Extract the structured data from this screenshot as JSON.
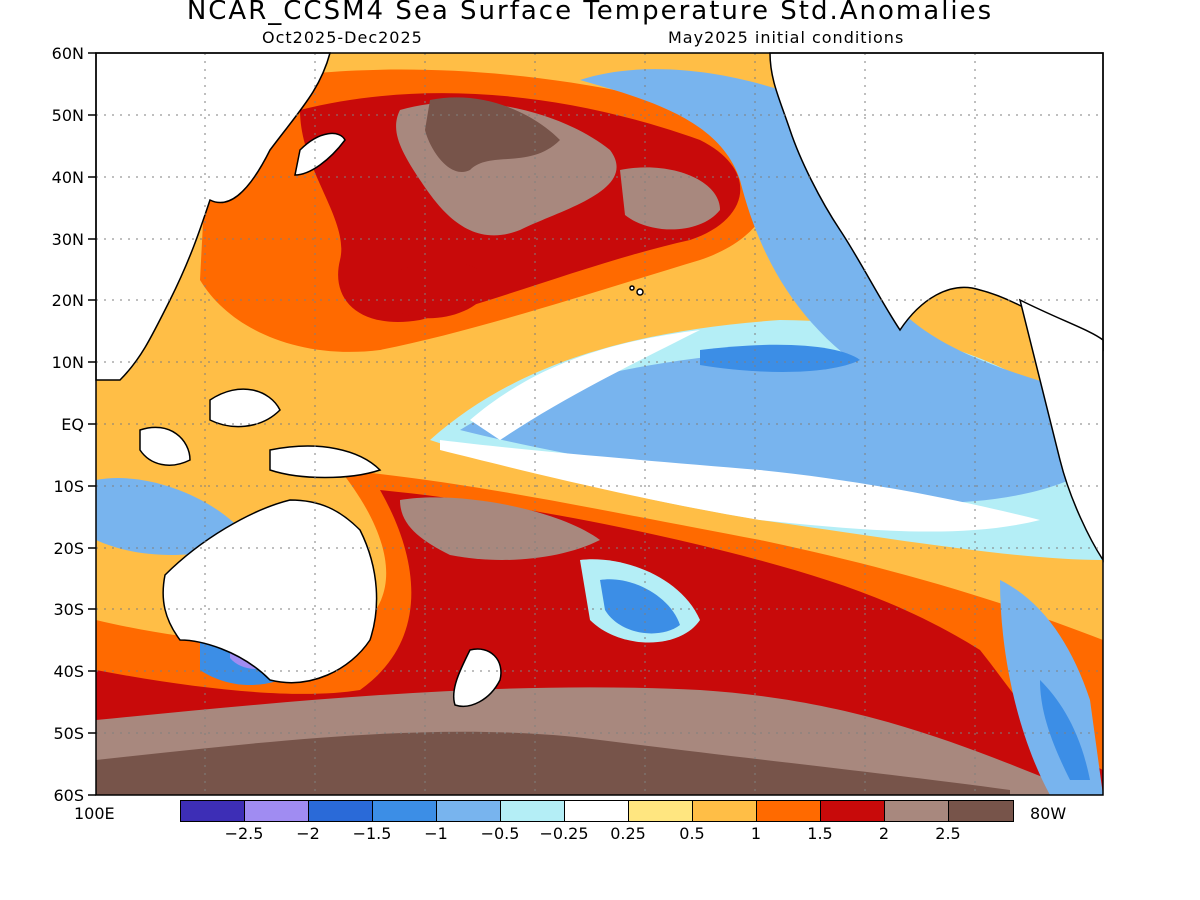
{
  "title": "NCAR_CCSM4 Sea Surface Temperature Std.Anomalies",
  "subtitle_left": "Oct2025-Dec2025",
  "subtitle_right": "May2025 initial conditions",
  "lat_labels": [
    "60N",
    "50N",
    "40N",
    "30N",
    "20N",
    "10N",
    "EQ",
    "10S",
    "20S",
    "30S",
    "40S",
    "50S",
    "60S"
  ],
  "lon_left": "100E",
  "lon_right": "80W",
  "colorbar": {
    "colors": [
      "#3d2eb6",
      "#a08cf2",
      "#2a6ad8",
      "#3c8ee6",
      "#78b4ee",
      "#b4eef6",
      "#ffffff",
      "#ffe680",
      "#ffbe46",
      "#ff6a00",
      "#c80a0a",
      "#a8887e",
      "#77544a"
    ],
    "labels": [
      "-2.5",
      "-2",
      "-1.5",
      "-1",
      "-0.5",
      "-0.25",
      "0.25",
      "0.5",
      "1",
      "1.5",
      "2",
      "2.5"
    ]
  },
  "colors": {
    "ocean_warm1": "#ffe680",
    "ocean_warm2": "#ffbe46",
    "ocean_warm3": "#ff6a00",
    "ocean_warm4": "#c80a0a",
    "ocean_warm5": "#a8887e",
    "ocean_warm6": "#77544a",
    "ocean_cool1": "#b4eef6",
    "ocean_cool2": "#78b4ee",
    "ocean_cool3": "#3c8ee6",
    "ocean_cool4": "#2a6ad8",
    "land": "#ffffff"
  }
}
